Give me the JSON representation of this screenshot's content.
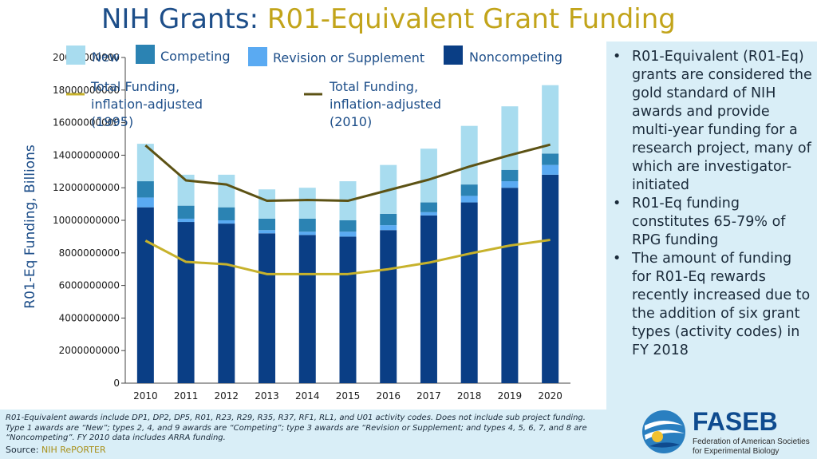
{
  "title": {
    "prefix": "NIH Grants: ",
    "accent": "R01-Equivalent Grant Funding"
  },
  "colors": {
    "new": "#a8dcef",
    "competing": "#2b83b3",
    "revision": "#5aaaf2",
    "noncompeting": "#0a3e85",
    "total_1995": "#c7b22c",
    "total_2010": "#5c5214",
    "title": "#1d4e89",
    "accent": "#c2a41a",
    "panel": "#d9eef7"
  },
  "chart_data": {
    "type": "bar",
    "stacked": true,
    "categories": [
      "2010",
      "2011",
      "2012",
      "2013",
      "2014",
      "2015",
      "2016",
      "2017",
      "2018",
      "2019",
      "2020"
    ],
    "ylabel": "R01-Eq Funding, Billions",
    "ylim": [
      0,
      20000000000
    ],
    "yticks": [
      "0",
      "2000000000",
      "4000000000",
      "6000000000",
      "8000000000",
      "10000000000",
      "12000000000",
      "14000000000",
      "16000000000",
      "18000000000",
      "20000000000"
    ],
    "series": [
      {
        "name": "Noncompeting",
        "key": "noncompeting",
        "values": [
          10800000000,
          9900000000,
          9800000000,
          9200000000,
          9100000000,
          9000000000,
          9400000000,
          10300000000,
          11100000000,
          12000000000,
          12800000000
        ]
      },
      {
        "name": "Revision or Supplement",
        "key": "revision",
        "values": [
          600000000,
          200000000,
          200000000,
          200000000,
          200000000,
          300000000,
          300000000,
          200000000,
          400000000,
          400000000,
          600000000
        ]
      },
      {
        "name": "Competing",
        "key": "competing",
        "values": [
          1000000000,
          800000000,
          800000000,
          700000000,
          800000000,
          700000000,
          700000000,
          600000000,
          700000000,
          700000000,
          700000000
        ]
      },
      {
        "name": "New",
        "key": "new",
        "values": [
          2300000000,
          1900000000,
          2000000000,
          1800000000,
          1900000000,
          2400000000,
          3000000000,
          3300000000,
          3600000000,
          3900000000,
          4200000000
        ]
      }
    ],
    "lines": [
      {
        "name": "Total Funding, inflation-adjusted (1995)",
        "key": "total_1995",
        "values": [
          8750000000,
          7450000000,
          7300000000,
          6700000000,
          6700000000,
          6700000000,
          7000000000,
          7400000000,
          7950000000,
          8450000000,
          8800000000
        ]
      },
      {
        "name": "Total Funding, inflation-adjusted (2010)",
        "key": "total_2010",
        "values": [
          14600000000,
          12450000000,
          12200000000,
          11200000000,
          11250000000,
          11200000000,
          11850000000,
          12500000000,
          13300000000,
          14000000000,
          14650000000
        ]
      }
    ],
    "legend": {
      "labels": {
        "new": "New",
        "competing": "Competing",
        "revision": "Revision or Supplement",
        "noncompeting": "Noncompeting",
        "total_1995": [
          "Total Funding,",
          "inflation-adjusted",
          "(1995)"
        ],
        "total_2010": [
          "Total Funding,",
          "inflation-adjusted",
          "(2010)"
        ]
      }
    }
  },
  "bullets": [
    "R01-Equivalent (R01-Eq) grants are considered the gold standard of NIH awards and provide multi-year funding for a research project, many of which are investigator-initiated",
    "R01-Eq funding constitutes 65-79% of RPG funding",
    "The amount of funding for R01-Eq rewards recently increased due to the addition of six grant types (activity codes) in FY 2018"
  ],
  "footnote": "R01-Equivalent awards include DP1, DP2, DP5, R01, R23, R29, R35, R37, RF1, RL1, and U01 activity codes. Does not include sub project funding. Type 1 awards are “New”; types 2, 4, and 9 awards are “Competing”; type 3 awards are “Revision or Supplement; and types 4, 5, 6, 7, and 8 are “Noncompeting”. FY 2010 data includes ARRA funding.",
  "source": {
    "label": "Source: ",
    "name": "NIH RePORTER"
  },
  "logo": {
    "name": "FASEB",
    "line1": "Federation of American Societies",
    "line2": "for Experimental Biology"
  }
}
